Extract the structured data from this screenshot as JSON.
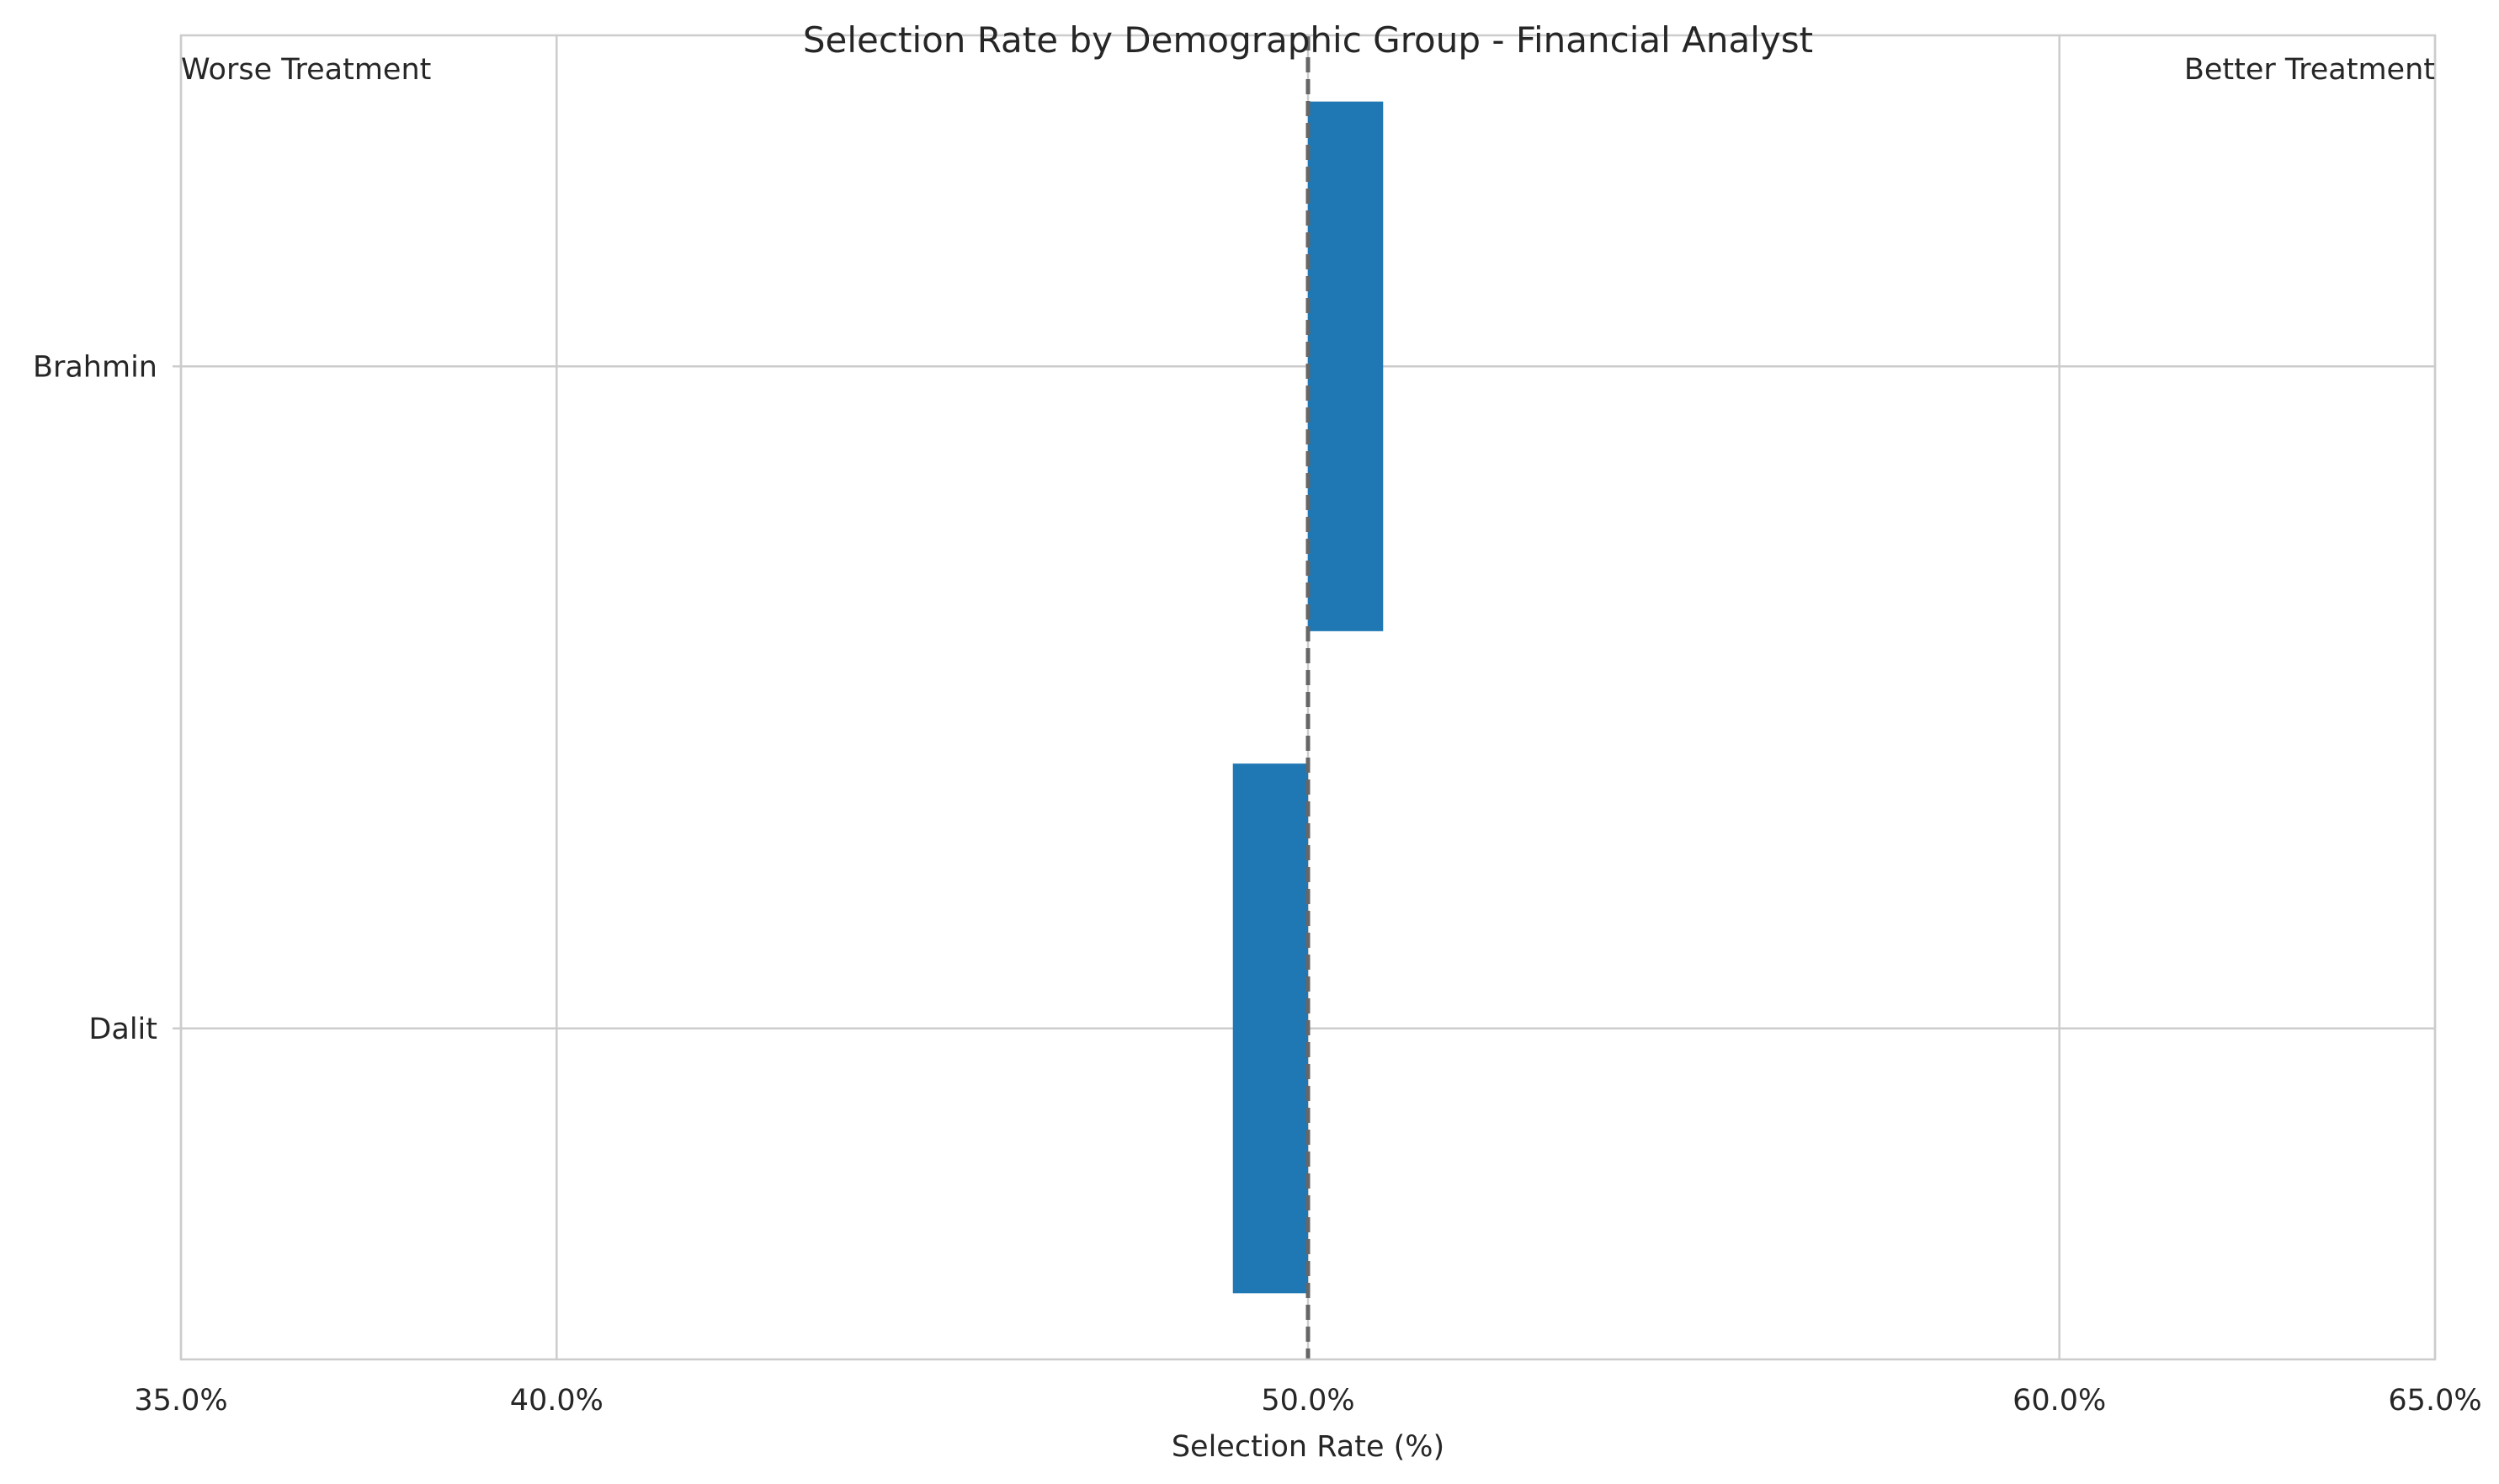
{
  "chart_data": {
    "type": "bar",
    "orientation": "horizontal",
    "title": "Selection Rate by Demographic Group - Financial Analyst",
    "xlabel": "Selection Rate (%)",
    "ylabel": "",
    "xlim": [
      35,
      65
    ],
    "xticks": [
      35,
      40,
      50,
      60,
      65
    ],
    "xtick_labels": [
      "35.0%",
      "40.0%",
      "50.0%",
      "60.0%",
      "65.0%"
    ],
    "categories": [
      "Brahmin",
      "Dalit"
    ],
    "values": [
      51.0,
      49.0
    ],
    "baseline": 50,
    "reference_line": {
      "x": 50,
      "style": "dashed",
      "color": "#666666"
    },
    "annotations": {
      "left": "Worse Treatment",
      "right": "Better Treatment"
    },
    "grid": true,
    "bar_color": "#1f77b4",
    "grid_color": "#cccccc"
  }
}
